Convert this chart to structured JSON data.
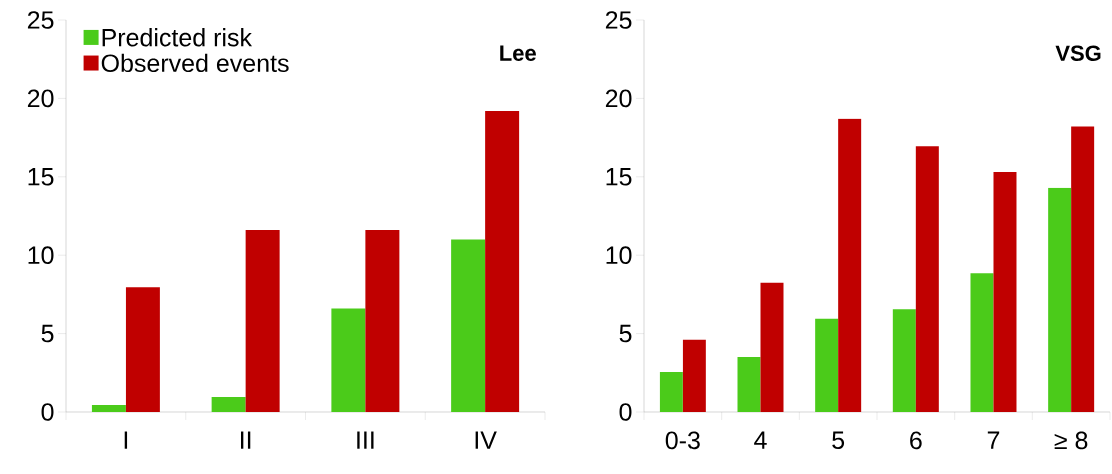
{
  "chart_data": [
    {
      "type": "bar",
      "title": "Lee",
      "categories": [
        "I",
        "II",
        "III",
        "IV"
      ],
      "series": [
        {
          "name": "Predicted risk",
          "color": "#4bcb1a",
          "values": [
            0.45,
            0.95,
            6.6,
            11.0
          ]
        },
        {
          "name": "Observed events",
          "color": "#c00000",
          "values": [
            7.95,
            11.6,
            11.6,
            19.2
          ]
        }
      ],
      "ylim": [
        0,
        25
      ],
      "yticks": [
        0,
        5,
        10,
        15,
        20,
        25
      ],
      "grid": false,
      "legend": "top left"
    },
    {
      "type": "bar",
      "title": "VSG",
      "categories": [
        "0-3",
        "4",
        "5",
        "6",
        "7",
        "≥ 8"
      ],
      "series": [
        {
          "color": "#4bcb1a",
          "values": [
            2.55,
            3.5,
            5.95,
            6.55,
            8.85,
            14.3
          ]
        },
        {
          "color": "#c00000",
          "values": [
            4.6,
            8.25,
            18.7,
            16.95,
            15.3,
            18.2
          ]
        }
      ],
      "ylim": [
        0,
        25
      ],
      "yticks": [
        0,
        5,
        10,
        15,
        20,
        25
      ],
      "grid": false,
      "legend": false
    }
  ]
}
